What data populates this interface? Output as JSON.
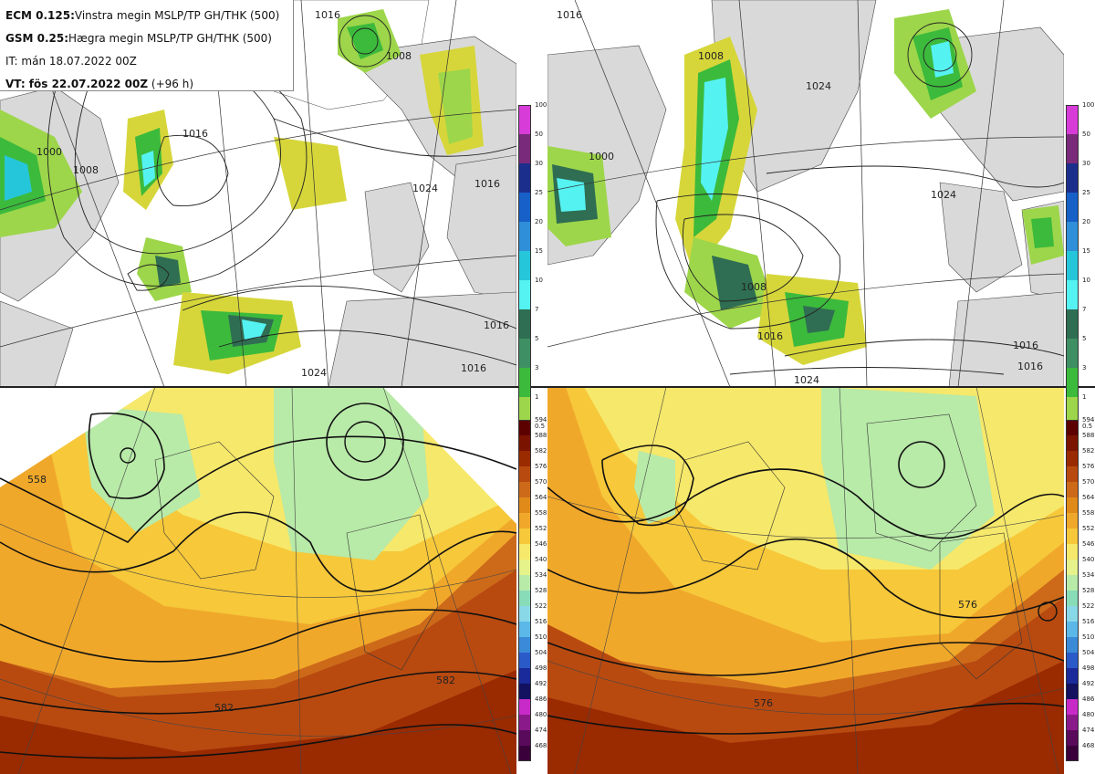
{
  "info": {
    "line1_bold": "ECM 0.125:",
    "line1_text": "Vinstra megin MSLP/TP GH/THK (500)",
    "line2_bold": "GSM 0.25:",
    "line2_text": "Hægra megin MSLP/TP GH/THK (500)",
    "line3_text": "IT: mán 18.07.2022 00Z",
    "line4_bold": "VT: fös 22.07.2022 00Z",
    "line4_text": "(+96 h)"
  },
  "precip_legend": {
    "values": [
      "100",
      "50",
      "30",
      "25",
      "20",
      "15",
      "10",
      "7",
      "5",
      "3",
      "1",
      "0.5"
    ],
    "colors": [
      "#d83cd8",
      "#7a2a7a",
      "#1c2e8c",
      "#1660c8",
      "#2f8fd8",
      "#26c6da",
      "#55f2f2",
      "#2f6e52",
      "#3f8f64",
      "#3cba3c",
      "#9dd64a",
      "#d6d63a"
    ]
  },
  "thk_legend": {
    "values": [
      "594",
      "588",
      "582",
      "576",
      "570",
      "564",
      "558",
      "552",
      "546",
      "540",
      "534",
      "528",
      "522",
      "516",
      "510",
      "504",
      "498",
      "492",
      "486",
      "480",
      "474",
      "468"
    ],
    "colors": [
      "#5c0000",
      "#7a1400",
      "#9a2a00",
      "#b84a10",
      "#cc6a1a",
      "#e08a1a",
      "#f0a82a",
      "#f6c83a",
      "#f6e86a",
      "#e6f28a",
      "#b8eaa8",
      "#88dcb8",
      "#88d8e8",
      "#5cb8e8",
      "#3a8ad8",
      "#2a5ac8",
      "#1a2a9a",
      "#121260",
      "#c82ac8",
      "#8a1a8a",
      "#5a0a5a",
      "#3a003a"
    ]
  },
  "isobars": {
    "tl": [
      "1016",
      "1008",
      "1000",
      "1016",
      "1008",
      "1016",
      "1024",
      "1016",
      "1016",
      "1024"
    ],
    "tr": [
      "1016",
      "1008",
      "1024",
      "1000",
      "1024",
      "1008",
      "1016",
      "1016",
      "1024",
      "1016"
    ],
    "bl": [
      "558",
      "582",
      "582"
    ],
    "br": [
      "576",
      "576"
    ]
  }
}
